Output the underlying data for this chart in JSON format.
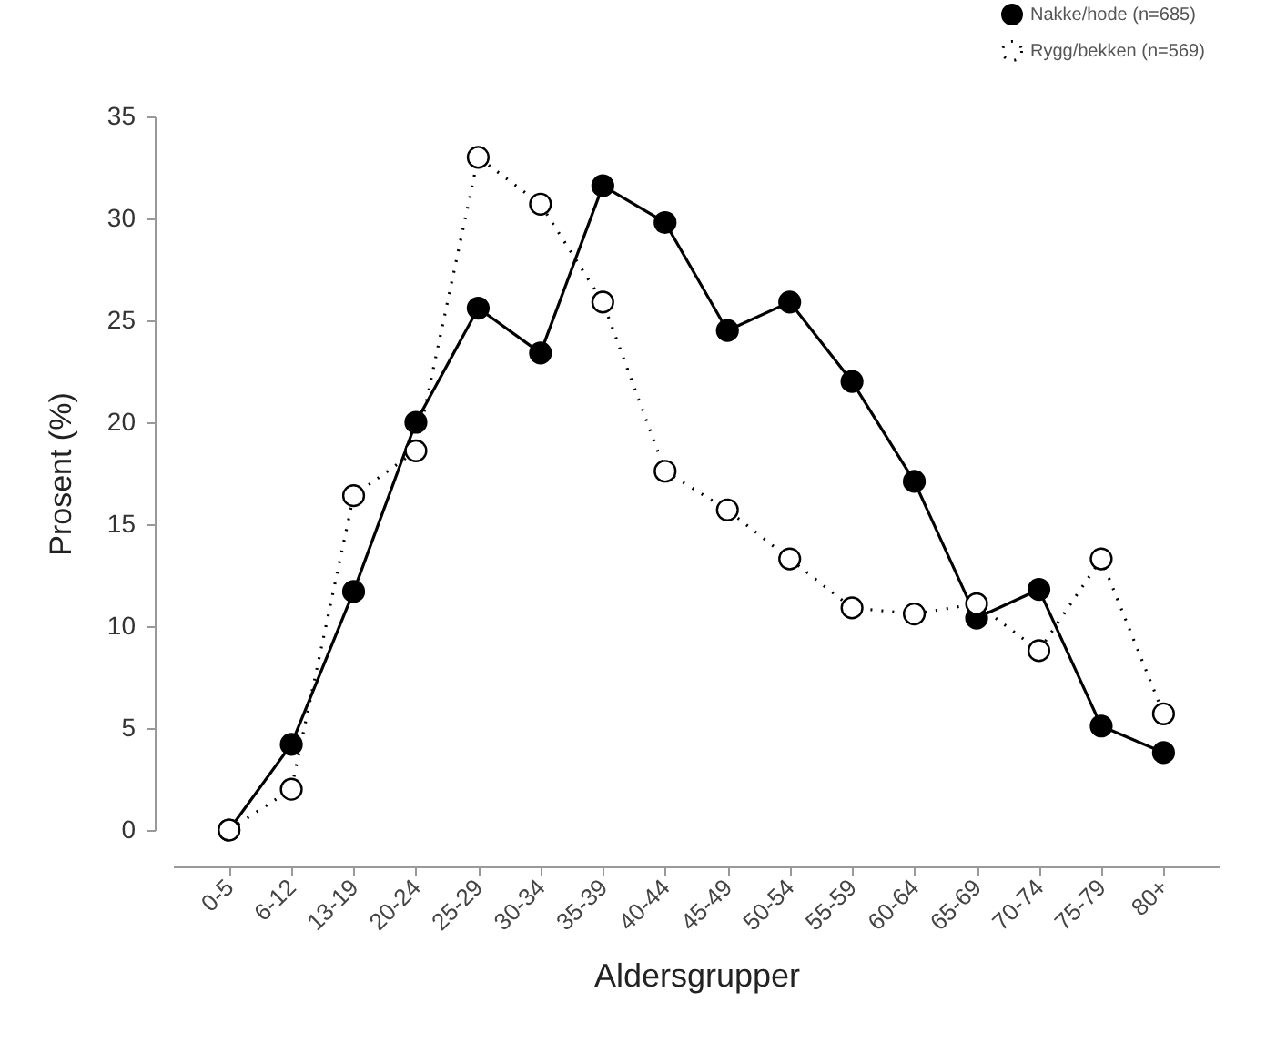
{
  "chart_data": {
    "type": "line",
    "xlabel": "Aldersgrupper",
    "ylabel": "Prosent (%)",
    "categories": [
      "0-5",
      "6-12",
      "13-19",
      "20-24",
      "25-29",
      "30-34",
      "35-39",
      "40-44",
      "45-49",
      "50-54",
      "55-59",
      "60-64",
      "65-69",
      "70-74",
      "75-79",
      "80+"
    ],
    "series": [
      {
        "name": "Nakke/hode (n=685)",
        "color": "#000000",
        "line_style": "solid",
        "values": [
          0,
          4.2,
          11.7,
          20,
          25.6,
          23.4,
          31.6,
          29.8,
          24.5,
          25.9,
          22.0,
          17.1,
          10.4,
          11.8,
          5.1,
          3.8
        ]
      },
      {
        "name": "Rygg/bekken (n=569)",
        "color": "#000000",
        "line_style": "dotted",
        "values": [
          0,
          2.0,
          16.4,
          18.6,
          33.0,
          30.7,
          25.9,
          17.6,
          15.7,
          13.3,
          10.9,
          10.6,
          11.1,
          8.8,
          13.3,
          5.7
        ]
      }
    ],
    "ylim": [
      0,
      35
    ],
    "yticks": [
      0,
      5,
      10,
      15,
      20,
      25,
      30,
      35
    ],
    "grid": false,
    "legend": "top right",
    "marker": "circle"
  }
}
